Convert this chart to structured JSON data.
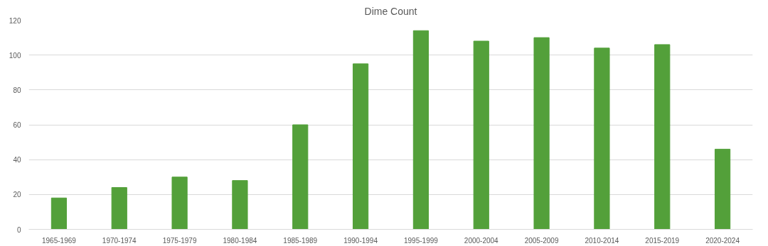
{
  "chart_data": {
    "type": "bar",
    "title": "Dime Count",
    "categories": [
      "1965-1969",
      "1970-1974",
      "1975-1979",
      "1980-1984",
      "1985-1989",
      "1990-1994",
      "1995-1999",
      "2000-2004",
      "2005-2009",
      "2010-2014",
      "2015-2019",
      "2020-2024"
    ],
    "values": [
      18,
      24,
      30,
      28,
      60,
      95,
      114,
      108,
      110,
      104,
      106,
      46
    ],
    "color": "#53a03a",
    "ylim": [
      0,
      120
    ],
    "yticks": [
      0,
      20,
      40,
      60,
      80,
      100,
      120
    ],
    "grid": "y"
  }
}
